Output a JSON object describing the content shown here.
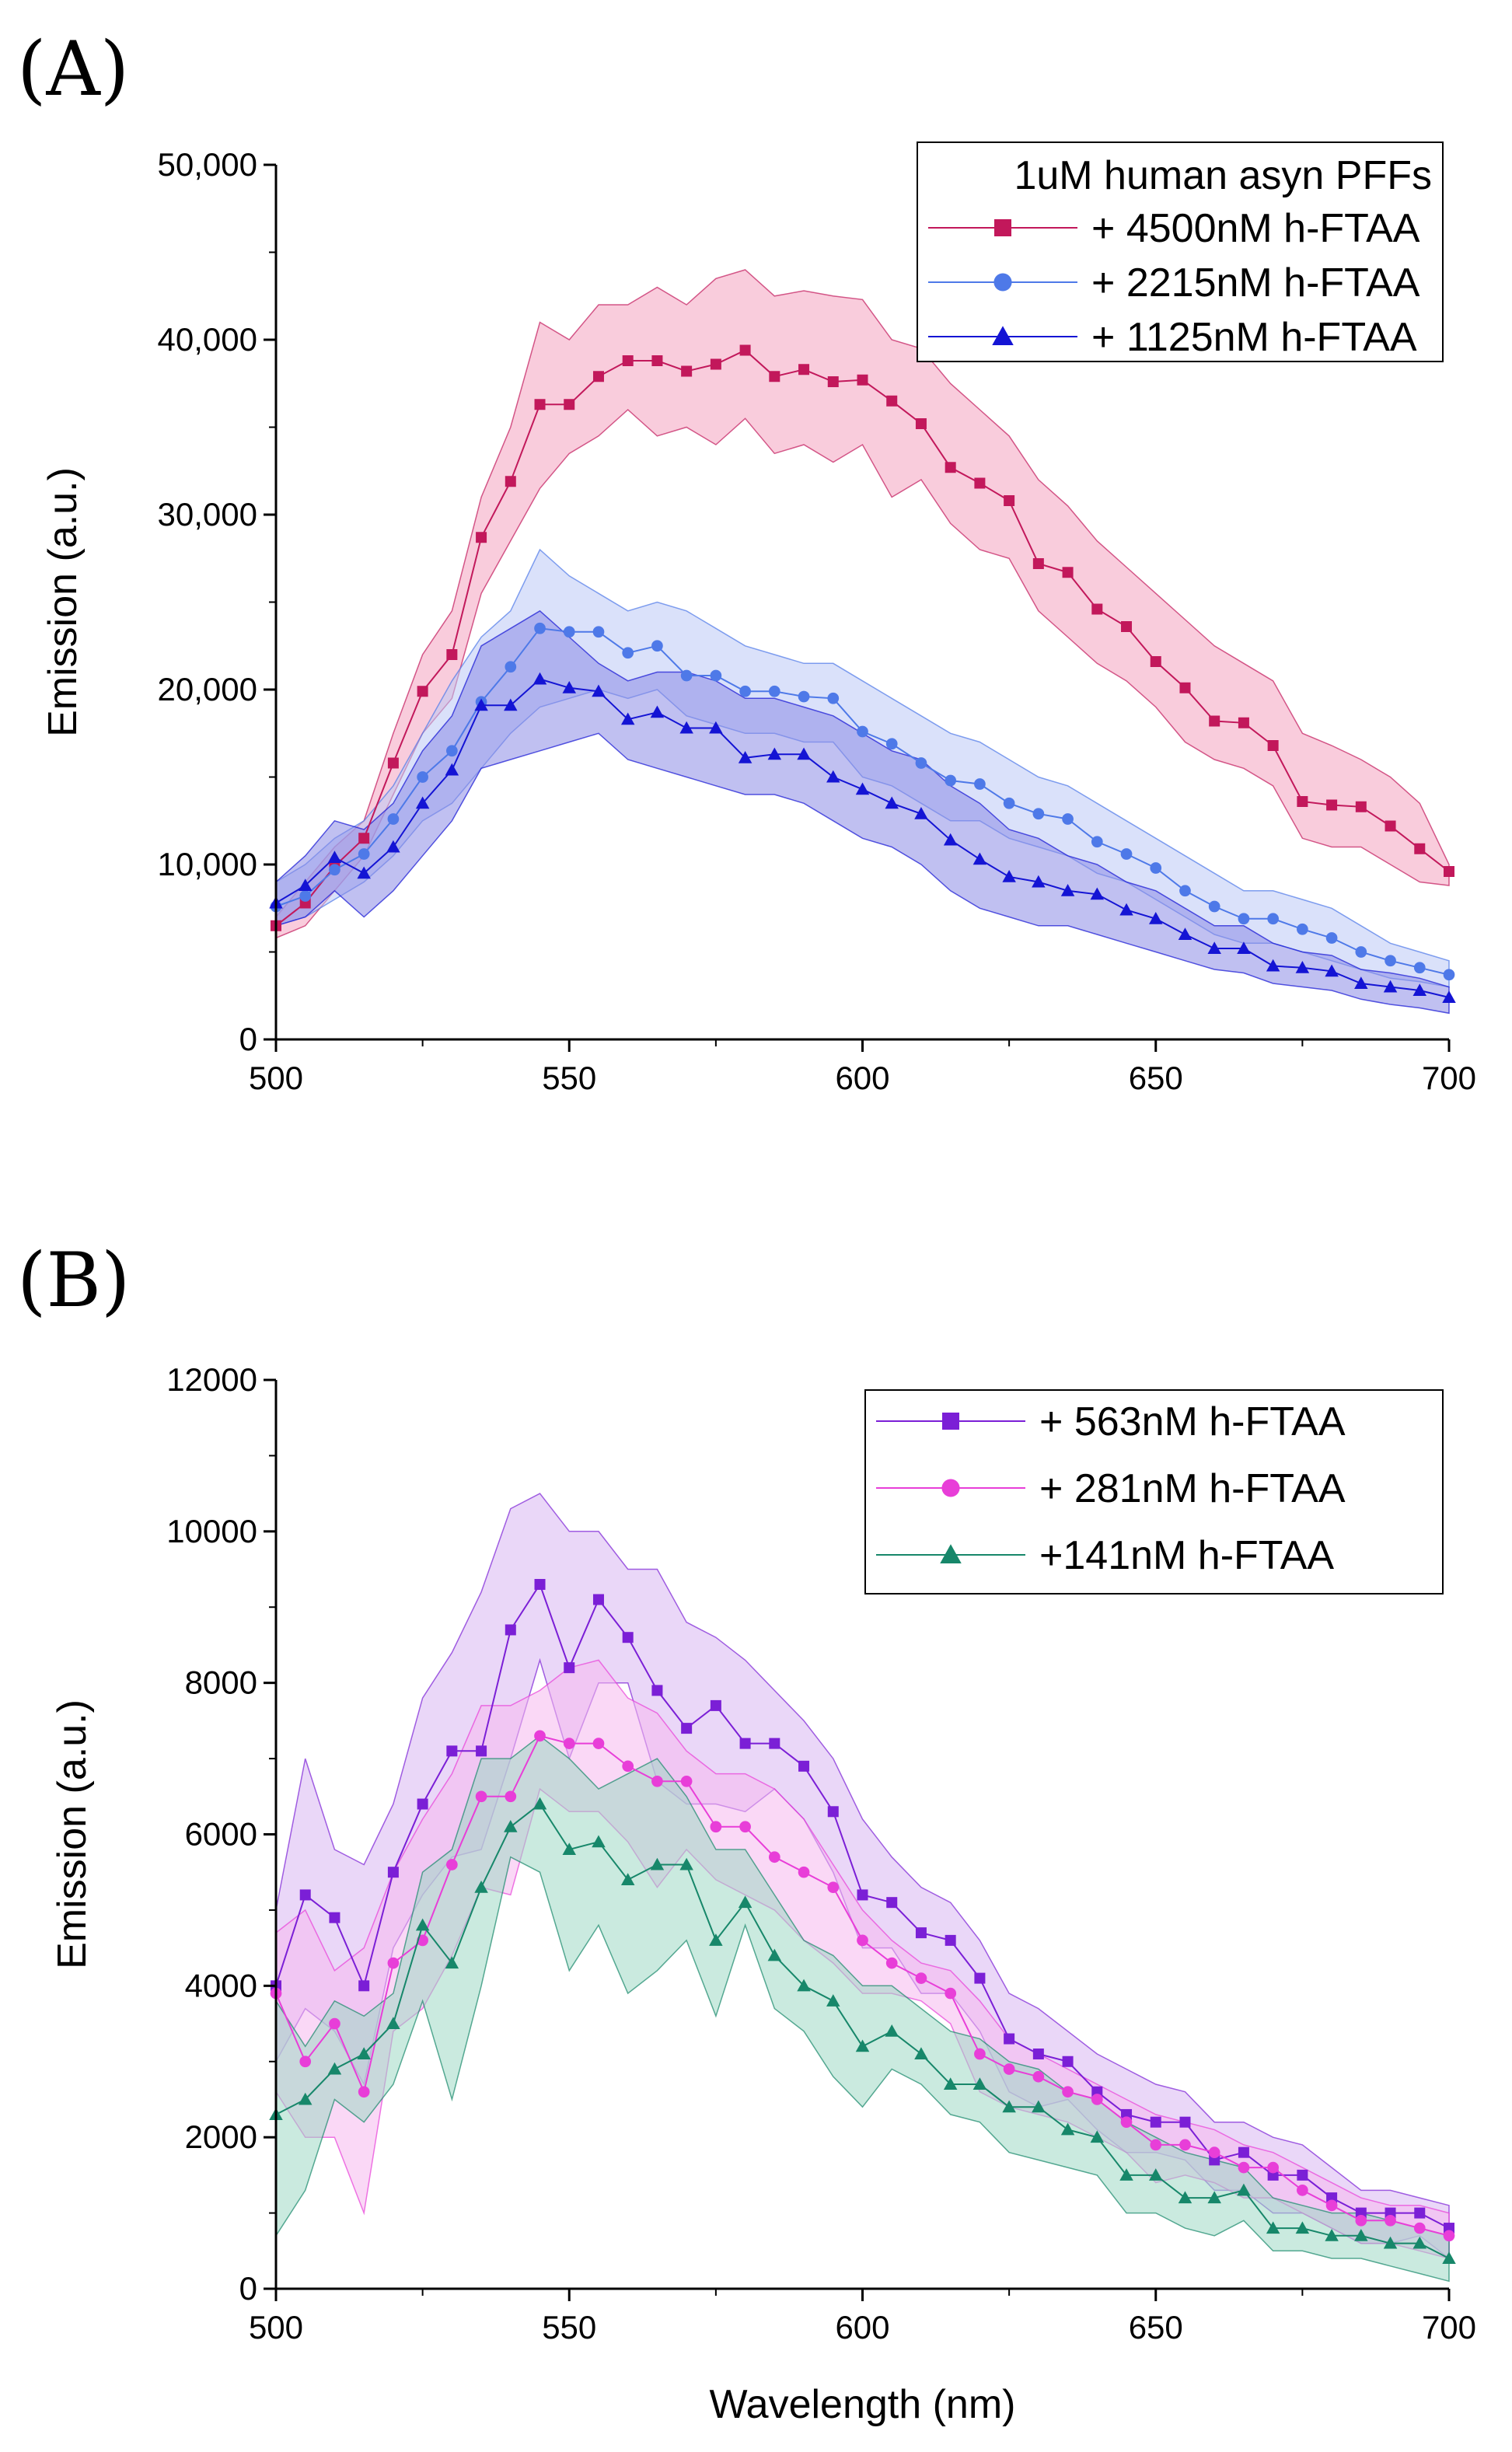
{
  "chart_data": [
    {
      "type": "line",
      "panel_label": "(A)",
      "xlabel": "",
      "ylabel": "Emission (a.u.)",
      "xlim": [
        500,
        700
      ],
      "ylim": [
        0,
        50000
      ],
      "x_ticks": [
        500,
        550,
        600,
        650,
        700
      ],
      "y_ticks": [
        0,
        10000,
        20000,
        30000,
        40000,
        50000
      ],
      "x_tick_labels": [
        "500",
        "550",
        "600",
        "650",
        "700"
      ],
      "y_tick_labels": [
        "0",
        "10,000",
        "20,000",
        "30,000",
        "40,000",
        "50,000"
      ],
      "grid": false,
      "legend_title": "1uM human asyn PFFs",
      "legend_position": "top-right",
      "x": [
        500,
        505,
        510,
        515,
        520,
        525,
        530,
        535,
        540,
        545,
        550,
        555,
        560,
        565,
        570,
        575,
        580,
        585,
        590,
        595,
        600,
        605,
        610,
        615,
        620,
        625,
        630,
        635,
        640,
        645,
        650,
        655,
        660,
        665,
        670,
        675,
        680,
        685,
        690,
        695,
        700
      ],
      "series": [
        {
          "name": "+ 4500nM h-FTAA",
          "color": "#c2185b",
          "band_color": "#f4a3bf",
          "marker": "square",
          "values": [
            6500,
            7800,
            9900,
            11500,
            15800,
            19900,
            22000,
            28700,
            31900,
            36300,
            36300,
            37900,
            38800,
            38800,
            38200,
            38600,
            39400,
            37900,
            38300,
            37600,
            37700,
            36500,
            35200,
            32700,
            31800,
            30800,
            27200,
            26700,
            24600,
            23600,
            21600,
            20100,
            18200,
            18100,
            16800,
            13600,
            13400,
            13300,
            12200,
            10900,
            9600
          ],
          "upper": [
            7000,
            9000,
            11000,
            12500,
            17500,
            22000,
            24500,
            31000,
            35000,
            41000,
            40000,
            42000,
            42000,
            43000,
            42000,
            43500,
            44000,
            42500,
            42800,
            42500,
            42300,
            40000,
            39500,
            37500,
            36000,
            34500,
            32000,
            30500,
            28500,
            27000,
            25500,
            24000,
            22500,
            21500,
            20500,
            17500,
            16800,
            16000,
            15000,
            13500,
            10000
          ],
          "lower": [
            5800,
            6500,
            8500,
            10500,
            14000,
            17500,
            19500,
            25500,
            28500,
            31500,
            33500,
            34500,
            36000,
            34500,
            35000,
            34000,
            35500,
            33500,
            34000,
            33000,
            34000,
            31000,
            32000,
            29500,
            28000,
            27500,
            24500,
            23000,
            21500,
            20500,
            19000,
            17000,
            16000,
            15500,
            14500,
            11500,
            11000,
            11000,
            10000,
            9000,
            8800
          ]
        },
        {
          "name": "+ 2215nM h-FTAA",
          "color": "#4e79e8",
          "band_color": "#bcc9f5",
          "marker": "circle",
          "values": [
            7600,
            8200,
            9700,
            10600,
            12600,
            15000,
            16500,
            19300,
            21300,
            23500,
            23300,
            23300,
            22100,
            22500,
            20800,
            20800,
            19900,
            19900,
            19600,
            19500,
            17600,
            16900,
            15800,
            14800,
            14600,
            13500,
            12900,
            12600,
            11300,
            10600,
            9800,
            8500,
            7600,
            6900,
            6900,
            6300,
            5800,
            5000,
            4500,
            4100,
            3700
          ],
          "upper": [
            9000,
            10000,
            11500,
            12500,
            14500,
            17500,
            20500,
            23000,
            24500,
            28000,
            26500,
            25500,
            24500,
            25000,
            24500,
            23500,
            22500,
            22000,
            21500,
            21500,
            20500,
            19500,
            18500,
            17500,
            17000,
            16000,
            15000,
            14500,
            13500,
            12500,
            11500,
            10500,
            9500,
            8500,
            8500,
            8000,
            7500,
            6500,
            5500,
            5000,
            4500
          ],
          "lower": [
            6500,
            7000,
            8000,
            9000,
            10500,
            12500,
            13500,
            15500,
            17500,
            19000,
            19500,
            20000,
            19500,
            20000,
            18500,
            18000,
            17500,
            17500,
            17000,
            17000,
            15000,
            14500,
            13500,
            12500,
            12500,
            11500,
            11000,
            10500,
            9500,
            9000,
            8000,
            7000,
            6000,
            5500,
            5500,
            5000,
            4500,
            4000,
            3500,
            3300,
            3000
          ]
        },
        {
          "name": "+ 1125nM h-FTAA",
          "color": "#1414d4",
          "band_color": "#8c8ce6",
          "marker": "triangle",
          "values": [
            7800,
            8800,
            10400,
            9500,
            11000,
            13500,
            15400,
            19100,
            19100,
            20600,
            20100,
            19900,
            18300,
            18700,
            17800,
            17800,
            16100,
            16300,
            16300,
            15000,
            14300,
            13500,
            12900,
            11400,
            10300,
            9300,
            9000,
            8500,
            8300,
            7400,
            6900,
            6000,
            5200,
            5200,
            4200,
            4100,
            3900,
            3200,
            3000,
            2800,
            2400
          ],
          "upper": [
            9000,
            10500,
            12500,
            12000,
            13500,
            16500,
            18500,
            22500,
            23500,
            24500,
            23000,
            21500,
            20500,
            21000,
            21000,
            20500,
            19500,
            19500,
            19000,
            18500,
            17500,
            16500,
            16000,
            14500,
            13500,
            12000,
            11500,
            10500,
            10000,
            9000,
            8500,
            7500,
            6500,
            6500,
            5500,
            5000,
            4800,
            4000,
            3800,
            3500,
            3000
          ],
          "lower": [
            6500,
            7000,
            8500,
            7000,
            8500,
            10500,
            12500,
            15500,
            16000,
            16500,
            17000,
            17500,
            16000,
            15500,
            15000,
            14500,
            14000,
            14000,
            13500,
            12500,
            11500,
            11000,
            10000,
            8500,
            7500,
            7000,
            6500,
            6500,
            6000,
            5500,
            5000,
            4500,
            4000,
            3800,
            3200,
            3000,
            2800,
            2300,
            2000,
            1800,
            1500
          ]
        }
      ]
    },
    {
      "type": "line",
      "panel_label": "(B)",
      "xlabel": "Wavelength (nm)",
      "ylabel": "Emission (a.u.)",
      "xlim": [
        500,
        700
      ],
      "ylim": [
        0,
        12000
      ],
      "x_ticks": [
        500,
        550,
        600,
        650,
        700
      ],
      "y_ticks": [
        0,
        2000,
        4000,
        6000,
        8000,
        10000,
        12000
      ],
      "x_tick_labels": [
        "500",
        "550",
        "600",
        "650",
        "700"
      ],
      "y_tick_labels": [
        "0",
        "2000",
        "4000",
        "6000",
        "8000",
        "10000",
        "12000"
      ],
      "grid": false,
      "legend_title": "",
      "legend_position": "top-right",
      "x": [
        500,
        505,
        510,
        515,
        520,
        525,
        530,
        535,
        540,
        545,
        550,
        555,
        560,
        565,
        570,
        575,
        580,
        585,
        590,
        595,
        600,
        605,
        610,
        615,
        620,
        625,
        630,
        635,
        640,
        645,
        650,
        655,
        660,
        665,
        670,
        675,
        680,
        685,
        690,
        695,
        700
      ],
      "series": [
        {
          "name": "+ 563nM h-FTAA",
          "color": "#7b1fd6",
          "band_color": "#d8b6f2",
          "marker": "square",
          "values": [
            4000,
            5200,
            4900,
            4000,
            5500,
            6400,
            7100,
            7100,
            8700,
            9300,
            8200,
            9100,
            8600,
            7900,
            7400,
            7700,
            7200,
            7200,
            6900,
            6300,
            5200,
            5100,
            4700,
            4600,
            4100,
            3300,
            3100,
            3000,
            2600,
            2300,
            2200,
            2200,
            1700,
            1800,
            1500,
            1500,
            1200,
            1000,
            1000,
            1000,
            800
          ],
          "upper": [
            5000,
            7000,
            5800,
            5600,
            6400,
            7800,
            8400,
            9200,
            10300,
            10500,
            10000,
            10000,
            9500,
            9500,
            8800,
            8600,
            8300,
            7900,
            7500,
            7000,
            6200,
            5700,
            5300,
            5100,
            4600,
            3900,
            3700,
            3400,
            3100,
            2900,
            2700,
            2600,
            2200,
            2200,
            2000,
            1900,
            1600,
            1300,
            1300,
            1200,
            1100
          ],
          "lower": [
            3000,
            3700,
            3400,
            2700,
            4500,
            5200,
            5700,
            5800,
            7000,
            8300,
            7000,
            8000,
            8000,
            6700,
            6400,
            6400,
            6300,
            6600,
            6200,
            5500,
            4500,
            4500,
            3900,
            3900,
            3400,
            2600,
            2400,
            2500,
            2100,
            1800,
            1800,
            1700,
            1300,
            1300,
            1000,
            1000,
            800,
            600,
            600,
            700,
            400
          ]
        },
        {
          "name": "+ 281nM h-FTAA",
          "color": "#e83ed8",
          "band_color": "#f6b8ee",
          "marker": "circle",
          "values": [
            3900,
            3000,
            3500,
            2600,
            4300,
            4600,
            5600,
            6500,
            6500,
            7300,
            7200,
            7200,
            6900,
            6700,
            6700,
            6100,
            6100,
            5700,
            5500,
            5300,
            4600,
            4300,
            4100,
            3900,
            3100,
            2900,
            2800,
            2600,
            2500,
            2200,
            1900,
            1900,
            1800,
            1600,
            1600,
            1300,
            1100,
            900,
            900,
            800,
            700
          ],
          "upper": [
            4700,
            5000,
            4200,
            4500,
            5500,
            6200,
            6800,
            7700,
            7700,
            7900,
            8200,
            8300,
            7800,
            7600,
            7100,
            6800,
            6800,
            6600,
            6200,
            5600,
            5000,
            4600,
            4300,
            4200,
            3800,
            3300,
            3100,
            2900,
            2700,
            2500,
            2300,
            2200,
            2100,
            1900,
            1800,
            1600,
            1400,
            1200,
            1100,
            1100,
            1000
          ],
          "lower": [
            2600,
            2000,
            2000,
            1000,
            3400,
            3700,
            4400,
            5300,
            5200,
            6600,
            6300,
            6300,
            5900,
            5300,
            5800,
            5400,
            5200,
            5000,
            4600,
            4300,
            3900,
            3900,
            3800,
            3500,
            2600,
            2400,
            2300,
            2200,
            2000,
            1800,
            1400,
            1500,
            1400,
            1200,
            1200,
            1000,
            800,
            600,
            600,
            500,
            400
          ]
        },
        {
          "name": "+141nM  h-FTAA",
          "color": "#17876a",
          "band_color": "#9fd8c4",
          "marker": "triangle",
          "values": [
            2300,
            2500,
            2900,
            3100,
            3500,
            4800,
            4300,
            5300,
            6100,
            6400,
            5800,
            5900,
            5400,
            5600,
            5600,
            4600,
            5100,
            4400,
            4000,
            3800,
            3200,
            3400,
            3100,
            2700,
            2700,
            2400,
            2400,
            2100,
            2000,
            1500,
            1500,
            1200,
            1200,
            1300,
            800,
            800,
            700,
            700,
            600,
            600,
            400
          ],
          "upper": [
            3800,
            3200,
            3800,
            3600,
            3900,
            5500,
            5800,
            7000,
            7000,
            7300,
            7000,
            6600,
            6800,
            7000,
            6500,
            5800,
            5800,
            5200,
            4600,
            4400,
            4000,
            4000,
            3700,
            3400,
            3300,
            3000,
            2900,
            2600,
            2500,
            2200,
            2000,
            1800,
            1700,
            1600,
            1200,
            1100,
            1000,
            1000,
            900,
            800,
            700
          ],
          "lower": [
            700,
            1300,
            2500,
            2200,
            2700,
            3800,
            2500,
            4000,
            5700,
            5500,
            4200,
            4800,
            3900,
            4200,
            4600,
            3600,
            4800,
            3700,
            3400,
            2800,
            2400,
            2900,
            2700,
            2300,
            2200,
            1800,
            1700,
            1600,
            1500,
            1000,
            1000,
            800,
            700,
            900,
            500,
            500,
            400,
            400,
            300,
            200,
            100
          ]
        }
      ]
    }
  ]
}
